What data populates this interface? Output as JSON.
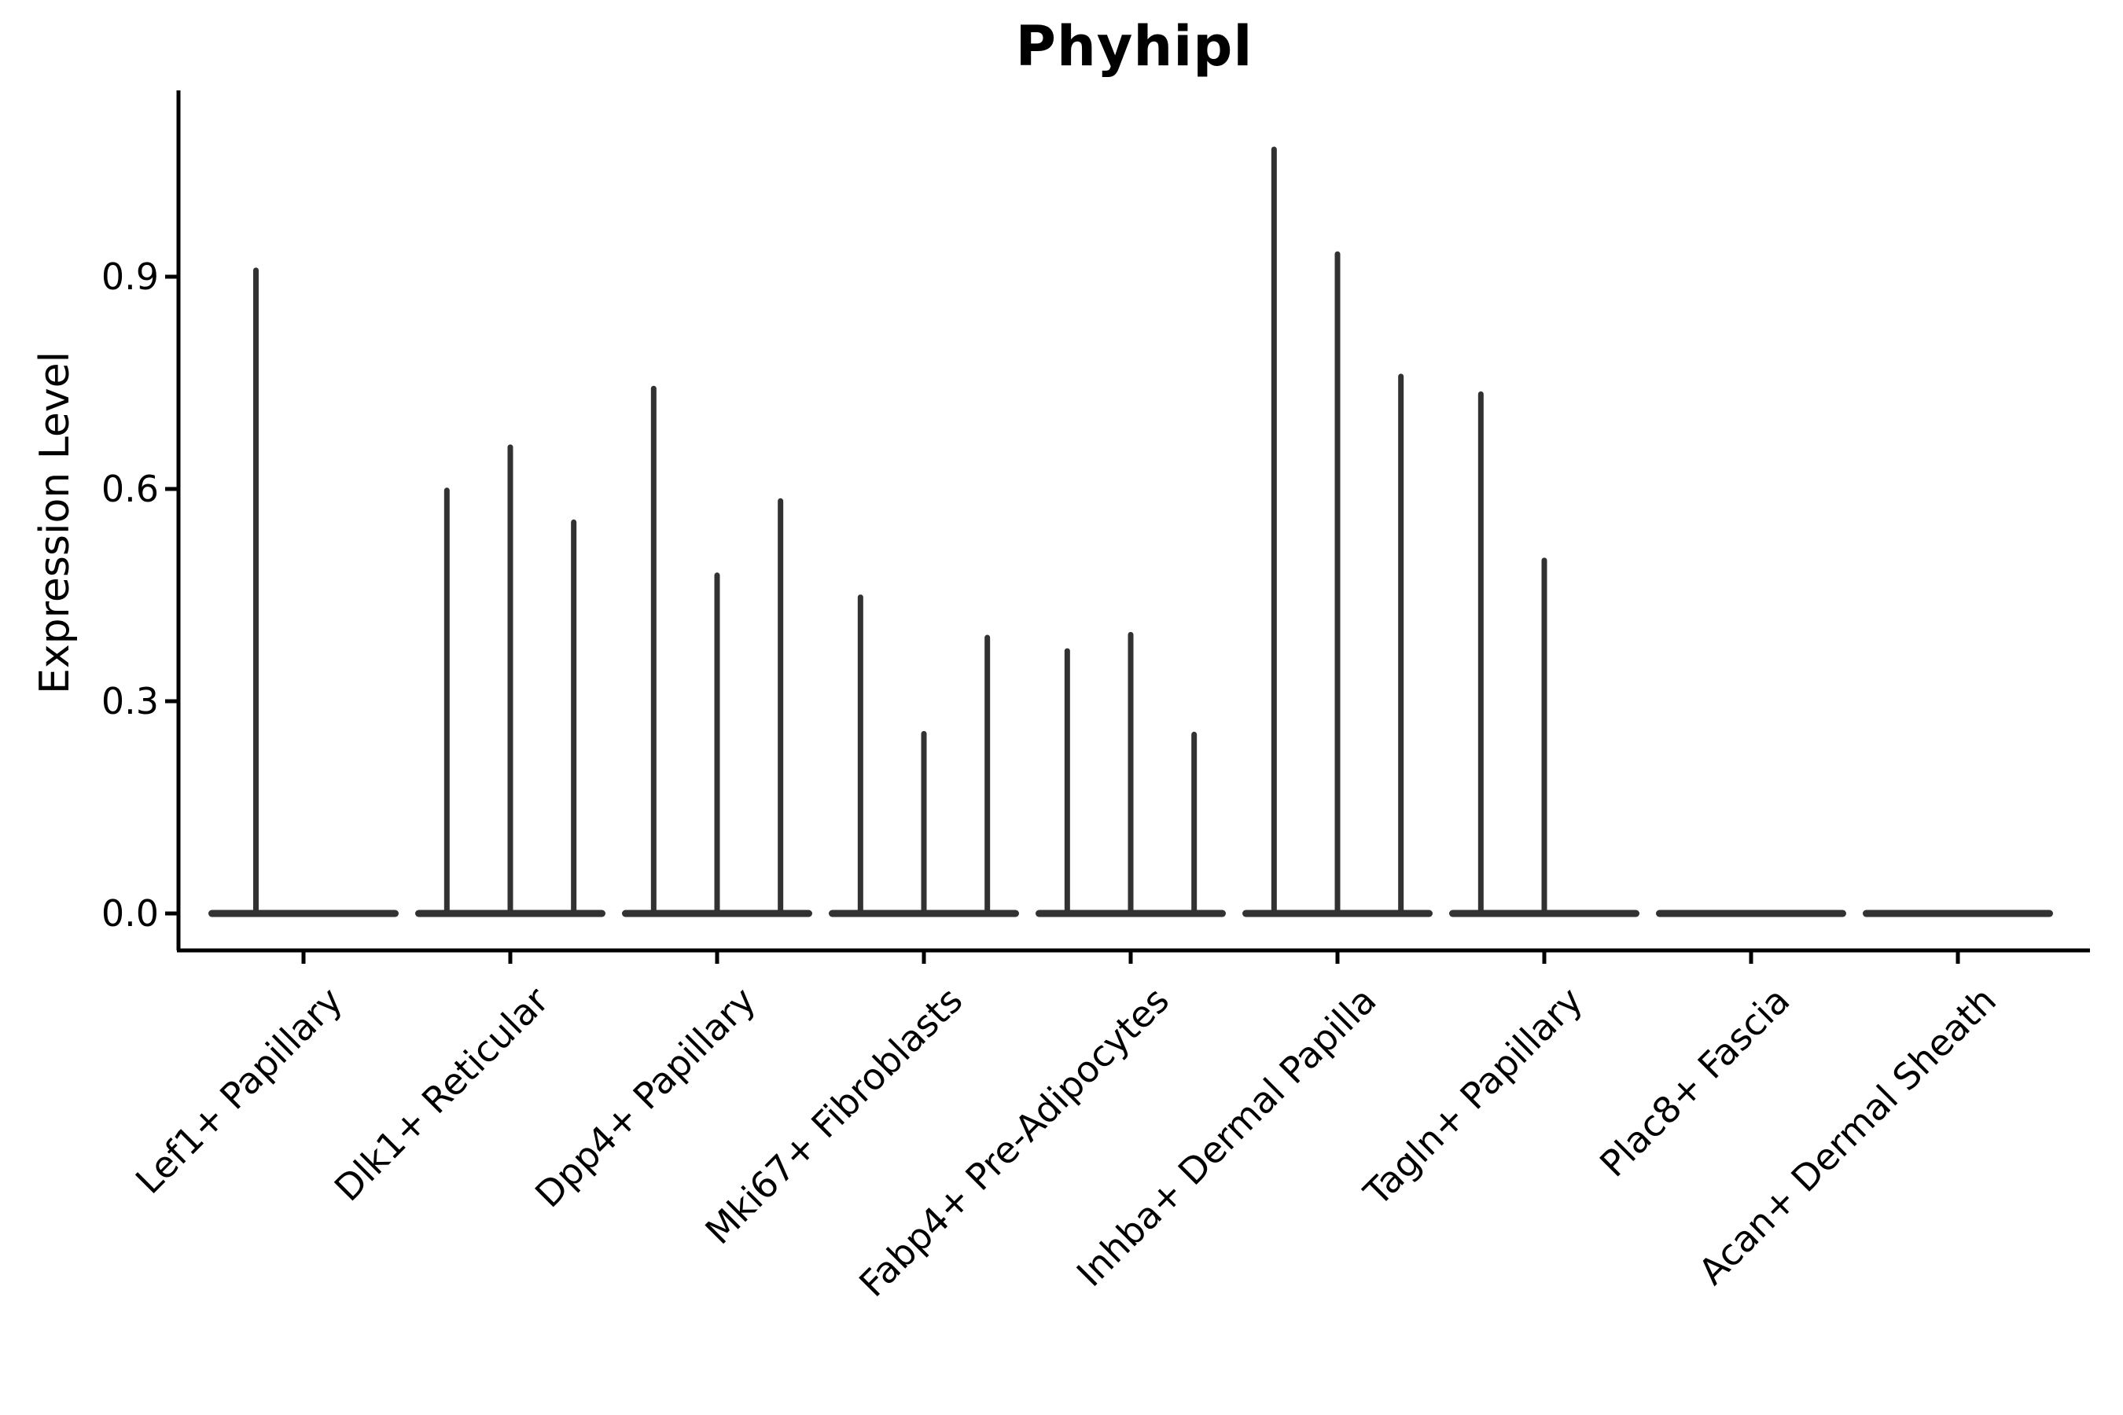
{
  "title": "Phyhipl",
  "axes": {
    "ylabel": "Expression Level",
    "xlabel": ""
  },
  "colors": {
    "axis": "#000000",
    "violin": "#323232",
    "background": "#ffffff"
  },
  "chart_data": {
    "type": "violin",
    "title": "Phyhipl",
    "xlabel": "",
    "ylabel": "Expression Level",
    "ylim": [
      0,
      1.16
    ],
    "yticks": [
      0.0,
      0.3,
      0.6,
      0.9
    ],
    "grid": false,
    "legend": "none",
    "description": "Split violin plot; nearly all mass at 0 so each violin renders as a flat base with a thin spike up to its maximum expression value.",
    "categories": [
      "Lef1+ Papillary",
      "Dlk1+ Reticular",
      "Dpp4+ Papillary",
      "Mki67+ Fibroblasts",
      "Fabp4+ Pre-Adipocytes",
      "Inhba+ Dermal Papilla",
      "Tagln+ Papillary",
      "Plac8+ Fascia",
      "Acan+ Dermal Sheath"
    ],
    "groups": [
      {
        "label": "Lef1+ Papillary",
        "violin_max_expression": [
          0.909,
          0.0
        ]
      },
      {
        "label": "Dlk1+ Reticular",
        "violin_max_expression": [
          0.598,
          0.659,
          0.553
        ]
      },
      {
        "label": "Dpp4+ Papillary",
        "violin_max_expression": [
          0.742,
          0.478,
          0.583
        ]
      },
      {
        "label": "Mki67+ Fibroblasts",
        "violin_max_expression": [
          0.447,
          0.254,
          0.39
        ]
      },
      {
        "label": "Fabp4+ Pre-Adipocytes",
        "violin_max_expression": [
          0.371,
          0.394,
          0.253
        ]
      },
      {
        "label": "Inhba+ Dermal Papilla",
        "violin_max_expression": [
          1.08,
          0.932,
          0.759
        ]
      },
      {
        "label": "Tagln+ Papillary",
        "violin_max_expression": [
          0.734,
          0.499,
          0.0
        ]
      },
      {
        "label": "Plac8+ Fascia",
        "violin_max_expression": [
          0.0,
          0.0,
          0.0
        ]
      },
      {
        "label": "Acan+ Dermal Sheath",
        "violin_max_expression": [
          0.0,
          0.0,
          0.0
        ]
      }
    ]
  }
}
